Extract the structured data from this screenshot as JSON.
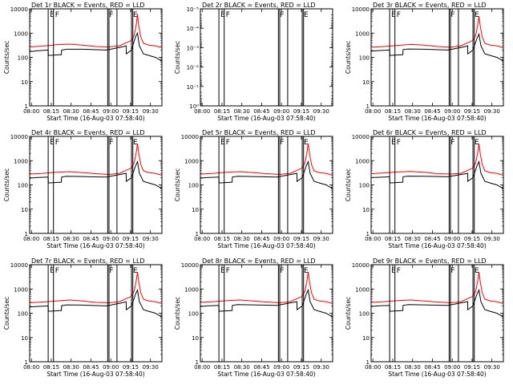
{
  "figure": {
    "xlabel": "Start Time (16-Aug-03 07:58:40)",
    "ylabel": "Counts/sec",
    "x_tick_labels": [
      "08:00",
      "08:15",
      "08:30",
      "08:45",
      "09:00",
      "09:15",
      "09:30"
    ],
    "colors": {
      "events": "#000000",
      "lld": "#ff0000",
      "axes": "#000000",
      "background": "#ffffff"
    }
  },
  "chart_data": [
    {
      "type": "line",
      "title": "Det 1r  BLACK = Events, RED = LLD",
      "yscale": "log",
      "ylim": [
        1,
        10000
      ],
      "y_tick_labels": [
        "1",
        "10",
        "100",
        "1000",
        "10000"
      ],
      "markers": [
        {
          "x_min": 14,
          "label": "E"
        },
        {
          "x_min": 18,
          "label": "F"
        },
        {
          "x_min": 59,
          "label": "F"
        },
        {
          "x_min": 60,
          "label": ""
        },
        {
          "x_min": 66,
          "label": ""
        },
        {
          "x_min": 77,
          "label": "E"
        },
        {
          "x_min": 78,
          "label": ""
        }
      ],
      "series": [
        {
          "name": "Events",
          "x": [
            0,
            5,
            14,
            14.1,
            24,
            24.1,
            28,
            40,
            58,
            70,
            73,
            73.1,
            77,
            80,
            81.5,
            83,
            86,
            90,
            95,
            100
          ],
          "y": [
            170,
            185,
            200,
            120,
            130,
            200,
            215,
            215,
            200,
            270,
            300,
            140,
            200,
            700,
            1000,
            300,
            140,
            120,
            100,
            70
          ]
        },
        {
          "name": "LLD",
          "x": [
            0,
            10,
            20,
            30,
            40,
            50,
            60,
            68,
            73,
            77,
            79,
            80.5,
            81.5,
            82.5,
            84,
            86,
            90,
            95,
            100
          ],
          "y": [
            270,
            290,
            330,
            350,
            320,
            280,
            270,
            300,
            400,
            500,
            800,
            2000,
            6000,
            2000,
            700,
            380,
            320,
            300,
            250
          ]
        }
      ]
    },
    {
      "type": "line",
      "title": "Det 2r  BLACK = Events, RED = LLD",
      "yscale": "log",
      "ylim": [
        1,
        1e-05
      ],
      "y_tick_labels": [
        "10⁻⁵",
        "10⁻⁴",
        "10⁻³",
        "10⁻²",
        "10⁻¹",
        "10⁰"
      ],
      "markers": [
        {
          "x_min": 14,
          "label": "E"
        },
        {
          "x_min": 18,
          "label": "F"
        },
        {
          "x_min": 59,
          "label": "F"
        },
        {
          "x_min": 60,
          "label": ""
        },
        {
          "x_min": 66,
          "label": ""
        },
        {
          "x_min": 77,
          "label": "E"
        },
        {
          "x_min": 78,
          "label": ""
        }
      ],
      "series": []
    },
    {
      "type": "line",
      "title": "Det 3r  BLACK = Events, RED = LLD",
      "yscale": "log",
      "ylim": [
        1,
        10000
      ],
      "y_tick_labels": [
        "1",
        "10",
        "100",
        "1000",
        "10000"
      ],
      "markers": [
        {
          "x_min": 14,
          "label": "E"
        },
        {
          "x_min": 18,
          "label": "F"
        },
        {
          "x_min": 59,
          "label": "F"
        },
        {
          "x_min": 60,
          "label": ""
        },
        {
          "x_min": 66,
          "label": ""
        },
        {
          "x_min": 77,
          "label": "E"
        },
        {
          "x_min": 78,
          "label": ""
        }
      ],
      "series": [
        {
          "name": "Events",
          "x": [
            0,
            5,
            14,
            14.1,
            24,
            24.1,
            28,
            40,
            58,
            70,
            73,
            73.1,
            77,
            80,
            81.5,
            83,
            86,
            90,
            95,
            100
          ],
          "y": [
            180,
            190,
            200,
            120,
            130,
            210,
            220,
            215,
            200,
            270,
            300,
            140,
            200,
            600,
            900,
            300,
            140,
            120,
            100,
            70
          ]
        },
        {
          "name": "LLD",
          "x": [
            0,
            10,
            20,
            30,
            40,
            50,
            60,
            68,
            73,
            77,
            79,
            80.5,
            81.5,
            82.5,
            84,
            86,
            90,
            95,
            100
          ],
          "y": [
            260,
            280,
            310,
            340,
            320,
            280,
            260,
            300,
            400,
            500,
            800,
            2000,
            5000,
            2000,
            700,
            380,
            320,
            300,
            250
          ]
        }
      ]
    },
    {
      "type": "line",
      "title": "Det 4r  BLACK = Events, RED = LLD",
      "yscale": "log",
      "ylim": [
        1,
        10000
      ],
      "y_tick_labels": [
        "1",
        "10",
        "100",
        "1000",
        "10000"
      ],
      "markers": [
        {
          "x_min": 14,
          "label": "E"
        },
        {
          "x_min": 18,
          "label": "F"
        },
        {
          "x_min": 59,
          "label": "F"
        },
        {
          "x_min": 60,
          "label": ""
        },
        {
          "x_min": 66,
          "label": ""
        },
        {
          "x_min": 77,
          "label": "E"
        },
        {
          "x_min": 78,
          "label": ""
        }
      ],
      "series": [
        {
          "name": "Events",
          "x": [
            0,
            5,
            14,
            14.1,
            24,
            24.1,
            28,
            40,
            58,
            70,
            73,
            73.1,
            77,
            80,
            81.5,
            83,
            86,
            90,
            95,
            100
          ],
          "y": [
            190,
            200,
            210,
            120,
            130,
            210,
            225,
            220,
            210,
            280,
            300,
            140,
            200,
            600,
            900,
            300,
            140,
            120,
            100,
            70
          ]
        },
        {
          "name": "LLD",
          "x": [
            0,
            10,
            20,
            30,
            40,
            50,
            60,
            68,
            73,
            77,
            79,
            80.5,
            81.5,
            82.5,
            84,
            86,
            90,
            95,
            100
          ],
          "y": [
            280,
            300,
            330,
            350,
            320,
            290,
            270,
            300,
            400,
            500,
            800,
            2000,
            5000,
            2000,
            700,
            380,
            320,
            300,
            250
          ]
        }
      ]
    },
    {
      "type": "line",
      "title": "Det 5r  BLACK = Events, RED = LLD",
      "yscale": "log",
      "ylim": [
        1,
        10000
      ],
      "y_tick_labels": [
        "1",
        "10",
        "100",
        "1000",
        "10000"
      ],
      "markers": [
        {
          "x_min": 14,
          "label": "E"
        },
        {
          "x_min": 18,
          "label": "F"
        },
        {
          "x_min": 59,
          "label": "F"
        },
        {
          "x_min": 60,
          "label": ""
        },
        {
          "x_min": 66,
          "label": ""
        },
        {
          "x_min": 77,
          "label": "E"
        },
        {
          "x_min": 78,
          "label": ""
        }
      ],
      "series": [
        {
          "name": "Events",
          "x": [
            0,
            5,
            14,
            14.1,
            24,
            24.1,
            28,
            40,
            58,
            70,
            73,
            73.1,
            77,
            80,
            81.5,
            83,
            86,
            90,
            95,
            100
          ],
          "y": [
            190,
            200,
            210,
            120,
            130,
            210,
            225,
            220,
            210,
            280,
            300,
            140,
            200,
            600,
            900,
            300,
            140,
            120,
            100,
            70
          ]
        },
        {
          "name": "LLD",
          "x": [
            0,
            10,
            20,
            30,
            40,
            50,
            60,
            68,
            73,
            77,
            79,
            80.5,
            81.5,
            82.5,
            84,
            86,
            90,
            95,
            100
          ],
          "y": [
            280,
            300,
            330,
            350,
            320,
            290,
            270,
            300,
            400,
            500,
            800,
            2000,
            5000,
            2000,
            700,
            380,
            320,
            300,
            250
          ]
        }
      ]
    },
    {
      "type": "line",
      "title": "Det 6r  BLACK = Events, RED = LLD",
      "yscale": "log",
      "ylim": [
        1,
        10000
      ],
      "y_tick_labels": [
        "1",
        "10",
        "100",
        "1000",
        "10000"
      ],
      "markers": [
        {
          "x_min": 14,
          "label": "E"
        },
        {
          "x_min": 18,
          "label": "F"
        },
        {
          "x_min": 59,
          "label": "F"
        },
        {
          "x_min": 60,
          "label": ""
        },
        {
          "x_min": 66,
          "label": ""
        },
        {
          "x_min": 77,
          "label": "E"
        },
        {
          "x_min": 78,
          "label": ""
        }
      ],
      "series": [
        {
          "name": "Events",
          "x": [
            0,
            5,
            14,
            14.1,
            24,
            24.1,
            28,
            40,
            58,
            70,
            73,
            73.1,
            77,
            80,
            81.5,
            83,
            86,
            90,
            95,
            100
          ],
          "y": [
            200,
            205,
            215,
            120,
            130,
            215,
            230,
            225,
            215,
            280,
            300,
            140,
            200,
            600,
            900,
            300,
            140,
            120,
            100,
            70
          ]
        },
        {
          "name": "LLD",
          "x": [
            0,
            10,
            20,
            30,
            40,
            50,
            60,
            68,
            73,
            77,
            79,
            80.5,
            81.5,
            82.5,
            84,
            86,
            90,
            95,
            100
          ],
          "y": [
            290,
            310,
            340,
            360,
            330,
            290,
            280,
            300,
            400,
            500,
            800,
            2000,
            5000,
            2000,
            700,
            380,
            320,
            300,
            250
          ]
        }
      ]
    },
    {
      "type": "line",
      "title": "Det 7r  BLACK = Events, RED = LLD",
      "yscale": "log",
      "ylim": [
        1,
        10000
      ],
      "y_tick_labels": [
        "1",
        "10",
        "100",
        "1000",
        "10000"
      ],
      "markers": [
        {
          "x_min": 14,
          "label": "E"
        },
        {
          "x_min": 18,
          "label": "F"
        },
        {
          "x_min": 59,
          "label": "F"
        },
        {
          "x_min": 60,
          "label": ""
        },
        {
          "x_min": 66,
          "label": ""
        },
        {
          "x_min": 77,
          "label": "E"
        },
        {
          "x_min": 78,
          "label": ""
        }
      ],
      "series": [
        {
          "name": "Events",
          "x": [
            0,
            5,
            14,
            14.1,
            24,
            24.1,
            28,
            40,
            58,
            70,
            73,
            73.1,
            77,
            80,
            81.5,
            83,
            86,
            90,
            95,
            100
          ],
          "y": [
            180,
            190,
            200,
            120,
            130,
            205,
            220,
            215,
            200,
            270,
            300,
            140,
            200,
            600,
            900,
            300,
            140,
            120,
            100,
            70
          ]
        },
        {
          "name": "LLD",
          "x": [
            0,
            10,
            20,
            30,
            40,
            50,
            60,
            68,
            73,
            77,
            79,
            80.5,
            81.5,
            82.5,
            84,
            86,
            90,
            95,
            100
          ],
          "y": [
            270,
            290,
            320,
            350,
            320,
            280,
            270,
            300,
            400,
            500,
            800,
            2000,
            5000,
            2000,
            700,
            380,
            320,
            300,
            250
          ]
        }
      ]
    },
    {
      "type": "line",
      "title": "Det 8r  BLACK = Events, RED = LLD",
      "yscale": "log",
      "ylim": [
        1,
        10000
      ],
      "y_tick_labels": [
        "1",
        "10",
        "100",
        "1000",
        "10000"
      ],
      "markers": [
        {
          "x_min": 14,
          "label": "E"
        },
        {
          "x_min": 18,
          "label": "F"
        },
        {
          "x_min": 59,
          "label": "F"
        },
        {
          "x_min": 60,
          "label": ""
        },
        {
          "x_min": 66,
          "label": ""
        },
        {
          "x_min": 77,
          "label": "E"
        },
        {
          "x_min": 78,
          "label": ""
        }
      ],
      "series": [
        {
          "name": "Events",
          "x": [
            0,
            5,
            14,
            14.1,
            24,
            24.1,
            28,
            40,
            58,
            70,
            73,
            73.1,
            77,
            80,
            81.5,
            83,
            86,
            90,
            95,
            100
          ],
          "y": [
            190,
            200,
            210,
            120,
            130,
            210,
            225,
            220,
            210,
            280,
            300,
            140,
            200,
            600,
            900,
            300,
            140,
            120,
            100,
            70
          ]
        },
        {
          "name": "LLD",
          "x": [
            0,
            10,
            20,
            30,
            40,
            50,
            60,
            68,
            73,
            77,
            79,
            80.5,
            81.5,
            82.5,
            84,
            86,
            90,
            95,
            100
          ],
          "y": [
            280,
            300,
            330,
            350,
            320,
            290,
            270,
            300,
            400,
            500,
            800,
            2000,
            5000,
            2000,
            700,
            380,
            320,
            300,
            250
          ]
        }
      ]
    },
    {
      "type": "line",
      "title": "Det 9r  BLACK = Events, RED = LLD",
      "yscale": "log",
      "ylim": [
        1,
        10000
      ],
      "y_tick_labels": [
        "1",
        "10",
        "100",
        "1000",
        "10000"
      ],
      "markers": [
        {
          "x_min": 14,
          "label": "E"
        },
        {
          "x_min": 18,
          "label": "F"
        },
        {
          "x_min": 59,
          "label": "F"
        },
        {
          "x_min": 60,
          "label": ""
        },
        {
          "x_min": 66,
          "label": ""
        },
        {
          "x_min": 77,
          "label": "E"
        },
        {
          "x_min": 78,
          "label": ""
        }
      ],
      "series": [
        {
          "name": "Events",
          "x": [
            0,
            5,
            14,
            14.1,
            24,
            24.1,
            28,
            40,
            58,
            70,
            73,
            73.1,
            77,
            80,
            81.5,
            83,
            86,
            90,
            95,
            100
          ],
          "y": [
            190,
            200,
            210,
            120,
            130,
            210,
            225,
            220,
            210,
            280,
            300,
            140,
            200,
            600,
            900,
            300,
            140,
            120,
            100,
            70
          ]
        },
        {
          "name": "LLD",
          "x": [
            0,
            10,
            20,
            30,
            40,
            50,
            60,
            68,
            73,
            77,
            79,
            80.5,
            81.5,
            82.5,
            84,
            86,
            90,
            95,
            100
          ],
          "y": [
            280,
            300,
            330,
            350,
            320,
            290,
            270,
            300,
            400,
            500,
            800,
            2000,
            5000,
            2000,
            700,
            380,
            320,
            300,
            250
          ]
        }
      ]
    }
  ]
}
